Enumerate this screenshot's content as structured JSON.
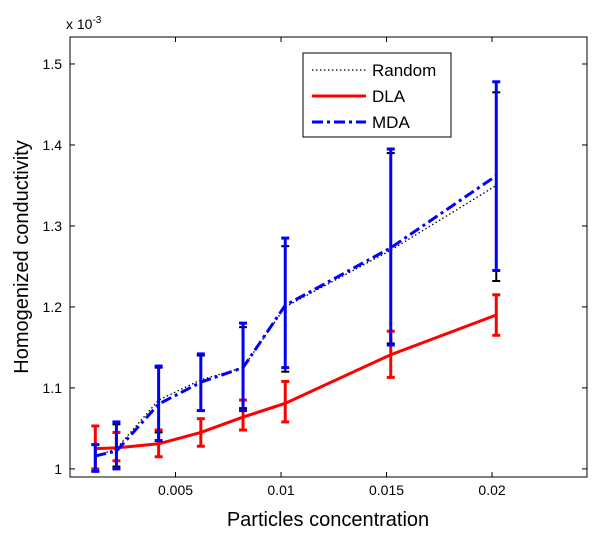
{
  "chart_data": {
    "type": "line",
    "xlabel": "Particles concentration",
    "ylabel": "Homogenized conductivity",
    "exponent_label": "x 10",
    "exponent_power": "-3",
    "xlim": [
      0,
      0.0245
    ],
    "ylim": [
      0.99,
      1.5333
    ],
    "xticks": [
      0.005,
      0.01,
      0.015,
      0.02
    ],
    "xtick_labels": [
      "0.005",
      "0.01",
      "0.015",
      "0.02"
    ],
    "yticks": [
      1.0,
      1.1,
      1.2,
      1.3,
      1.4,
      1.5
    ],
    "ytick_labels": [
      "1",
      "1.1",
      "1.2",
      "1.3",
      "1.4",
      "1.5"
    ],
    "grid": false,
    "legend_position": "top-right",
    "series": [
      {
        "name": "Random",
        "color": "#000000",
        "style": "dotted",
        "x": [
          0.0012,
          0.0022,
          0.0042,
          0.0062,
          0.0082,
          0.0102,
          0.0152,
          0.0202
        ],
        "y": [
          1.015,
          1.025,
          1.085,
          1.11,
          1.125,
          1.2,
          1.27,
          1.35
        ],
        "err_low": [
          0.997,
          1.003,
          1.045,
          1.072,
          1.075,
          1.12,
          1.155,
          1.232
        ],
        "err_high": [
          1.03,
          1.055,
          1.125,
          1.14,
          1.175,
          1.275,
          1.39,
          1.465
        ]
      },
      {
        "name": "DLA",
        "color": "#ff0000",
        "style": "solid",
        "x": [
          0.0012,
          0.0022,
          0.0042,
          0.0062,
          0.0082,
          0.0102,
          0.0152,
          0.0202
        ],
        "y": [
          1.025,
          1.026,
          1.031,
          1.045,
          1.064,
          1.081,
          1.141,
          1.19
        ],
        "err_low": [
          1.0,
          1.01,
          1.015,
          1.028,
          1.048,
          1.058,
          1.113,
          1.165
        ],
        "err_high": [
          1.053,
          1.045,
          1.048,
          1.062,
          1.085,
          1.108,
          1.17,
          1.215
        ]
      },
      {
        "name": "MDA",
        "color": "#0000ff",
        "style": "dashdot",
        "x": [
          0.0012,
          0.0022,
          0.0042,
          0.0062,
          0.0082,
          0.0102,
          0.0152,
          0.0202
        ],
        "y": [
          1.016,
          1.022,
          1.08,
          1.107,
          1.125,
          1.202,
          1.273,
          1.362
        ],
        "err_low": [
          0.997,
          1.0,
          1.035,
          1.072,
          1.072,
          1.125,
          1.153,
          1.245
        ],
        "err_high": [
          1.03,
          1.058,
          1.127,
          1.142,
          1.18,
          1.285,
          1.395,
          1.478
        ]
      }
    ]
  }
}
